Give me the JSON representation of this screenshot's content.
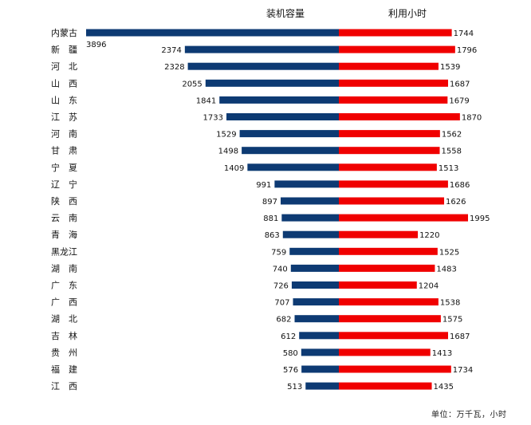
{
  "chart_data": {
    "type": "bar",
    "layout": "diverging-horizontal",
    "header_left": "装机容量",
    "header_right": "利用小时",
    "unit_note": "单位：万千瓦，小时",
    "categories": [
      "内蒙古",
      "新　疆",
      "河　北",
      "山　西",
      "山　东",
      "江　苏",
      "河　南",
      "甘　肃",
      "宁　夏",
      "辽　宁",
      "陕　西",
      "云　南",
      "青　海",
      "黑龙江",
      "湖　南",
      "广　东",
      "广　西",
      "湖　北",
      "吉　林",
      "贵　州",
      "福　建",
      "江　西"
    ],
    "series": [
      {
        "name": "装机容量",
        "color": "#0d3a73",
        "values": [
          3896,
          2374,
          2328,
          2055,
          1841,
          1733,
          1529,
          1498,
          1409,
          991,
          897,
          881,
          863,
          759,
          740,
          726,
          707,
          682,
          612,
          580,
          576,
          513
        ]
      },
      {
        "name": "利用小时",
        "color": "#f00000",
        "values": [
          1744,
          1796,
          1539,
          1687,
          1679,
          1870,
          1562,
          1558,
          1513,
          1686,
          1626,
          1995,
          1220,
          1525,
          1483,
          1204,
          1538,
          1575,
          1687,
          1413,
          1734,
          1435
        ]
      }
    ],
    "left_max": 3896,
    "right_max": 1995,
    "grid": false,
    "legend": "none"
  }
}
